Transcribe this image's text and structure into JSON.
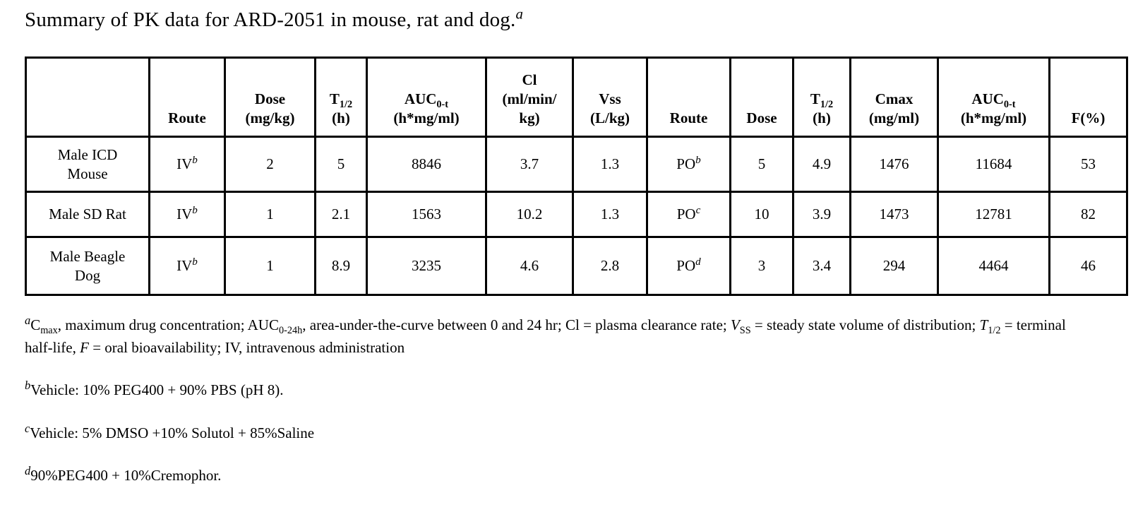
{
  "title": [
    {
      "t": "Summary of PK data for ARD-2051 in mouse, rat and dog."
    },
    {
      "t": "a",
      "sup": true,
      "i": true
    }
  ],
  "table": {
    "headers": [
      [],
      [
        {
          "t": "Route"
        }
      ],
      [
        {
          "t": "Dose"
        },
        {
          "br": true
        },
        {
          "t": "(mg/kg)"
        }
      ],
      [
        {
          "t": "T"
        },
        {
          "t": "1/2",
          "sub": true
        },
        {
          "br": true
        },
        {
          "t": "(h)"
        }
      ],
      [
        {
          "t": "AUC"
        },
        {
          "t": "0-t",
          "sub": true
        },
        {
          "br": true
        },
        {
          "t": "(h*mg/ml)"
        }
      ],
      [
        {
          "t": "Cl"
        },
        {
          "br": true
        },
        {
          "t": "(ml/min/"
        },
        {
          "br": true
        },
        {
          "t": "kg)"
        }
      ],
      [
        {
          "t": "Vss"
        },
        {
          "br": true
        },
        {
          "t": "(L/kg)"
        }
      ],
      [
        {
          "t": "Route"
        }
      ],
      [
        {
          "t": "Dose"
        }
      ],
      [
        {
          "t": "T"
        },
        {
          "t": "1/2",
          "sub": true
        },
        {
          "br": true
        },
        {
          "t": "(h)"
        }
      ],
      [
        {
          "t": "Cmax"
        },
        {
          "br": true
        },
        {
          "t": "(mg/ml)"
        }
      ],
      [
        {
          "t": "AUC"
        },
        {
          "t": "0-t",
          "sub": true
        },
        {
          "br": true
        },
        {
          "t": "(h*mg/ml)"
        }
      ],
      [
        {
          "t": "F(%)"
        }
      ]
    ],
    "rows": [
      {
        "species": [
          {
            "t": "Male ICD"
          },
          {
            "br": true
          },
          {
            "t": "Mouse"
          }
        ],
        "iv_route": [
          {
            "t": "IV"
          },
          {
            "t": "b",
            "sup": true,
            "i": true
          }
        ],
        "iv_dose": "2",
        "iv_t12": "5",
        "iv_auc": "8846",
        "cl": "3.7",
        "vss": "1.3",
        "po_route": [
          {
            "t": "PO"
          },
          {
            "t": "b",
            "sup": true,
            "i": true
          }
        ],
        "po_dose": "5",
        "po_t12": "4.9",
        "cmax": "1476",
        "po_auc": "11684",
        "f": "53"
      },
      {
        "species": [
          {
            "t": "Male SD Rat"
          }
        ],
        "iv_route": [
          {
            "t": "IV"
          },
          {
            "t": "b",
            "sup": true,
            "i": true
          }
        ],
        "iv_dose": "1",
        "iv_t12": "2.1",
        "iv_auc": "1563",
        "cl": "10.2",
        "vss": "1.3",
        "po_route": [
          {
            "t": "PO"
          },
          {
            "t": "c",
            "sup": true,
            "i": true
          }
        ],
        "po_dose": "10",
        "po_t12": "3.9",
        "cmax": "1473",
        "po_auc": "12781",
        "f": "82"
      },
      {
        "species": [
          {
            "t": "Male Beagle"
          },
          {
            "br": true
          },
          {
            "t": "Dog"
          }
        ],
        "iv_route": [
          {
            "t": "IV"
          },
          {
            "t": "b",
            "sup": true,
            "i": true
          }
        ],
        "iv_dose": "1",
        "iv_t12": "8.9",
        "iv_auc": "3235",
        "cl": "4.6",
        "vss": "2.8",
        "po_route": [
          {
            "t": "PO"
          },
          {
            "t": "d",
            "sup": true,
            "i": true
          }
        ],
        "po_dose": "3",
        "po_t12": "3.4",
        "cmax": "294",
        "po_auc": "4464",
        "f": "46"
      }
    ]
  },
  "footnotes": [
    [
      {
        "t": "a",
        "sup": true,
        "i": true
      },
      {
        "t": "C"
      },
      {
        "t": "max",
        "sub": true
      },
      {
        "t": ", maximum drug concentration; AUC"
      },
      {
        "t": "0-24h",
        "sub": true
      },
      {
        "t": ", area-under-the-curve between 0 and 24 hr; Cl = plasma clearance rate; "
      },
      {
        "t": "V",
        "i": true
      },
      {
        "t": "SS",
        "sub": true
      },
      {
        "t": " = steady state volume of distribution; "
      },
      {
        "t": "T",
        "i": true
      },
      {
        "t": "1/2",
        "sub": true
      },
      {
        "t": " = terminal half-life, "
      },
      {
        "t": "F",
        "i": true
      },
      {
        "t": " = oral bioavailability; IV, intravenous administration"
      }
    ],
    [
      {
        "t": "b",
        "sup": true,
        "i": true
      },
      {
        "t": "Vehicle: 10% PEG400 + 90% PBS (pH 8)."
      }
    ],
    [
      {
        "t": "c",
        "sup": true,
        "i": true
      },
      {
        "t": "Vehicle: 5% DMSO +10% Solutol + 85%Saline"
      }
    ],
    [
      {
        "t": "d",
        "sup": true,
        "i": true
      },
      {
        "t": "90%PEG400 + 10%Cremophor."
      }
    ]
  ]
}
